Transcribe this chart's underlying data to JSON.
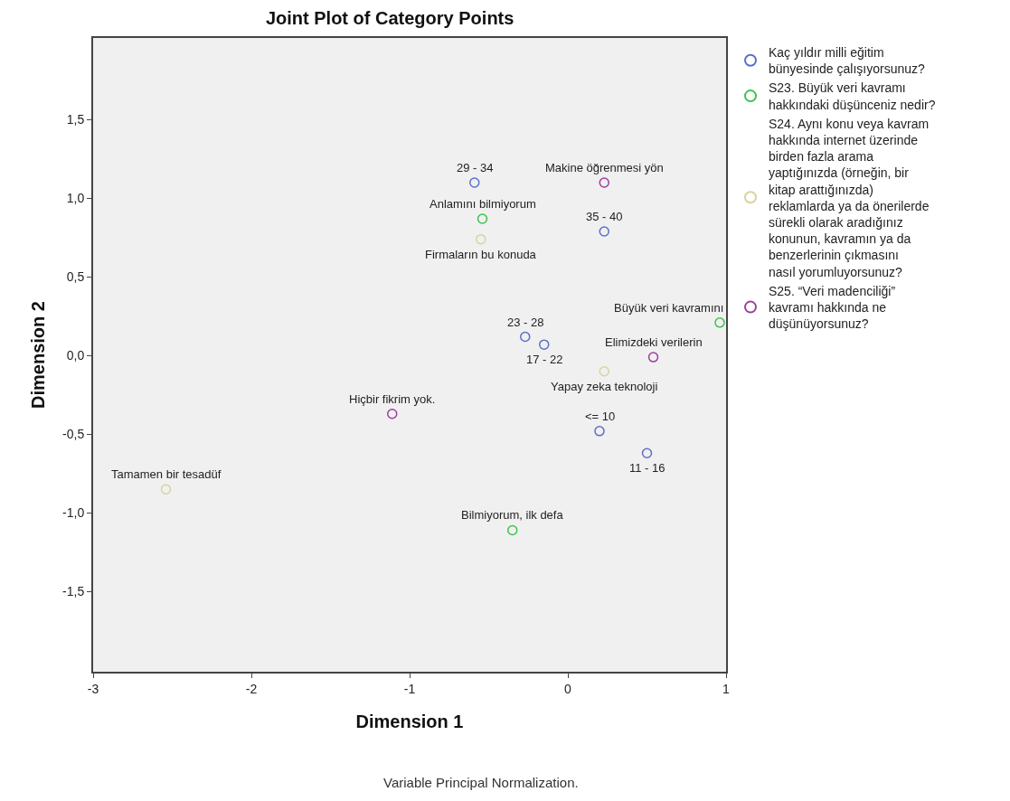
{
  "chart_data": {
    "type": "scatter",
    "title": "Joint Plot of Category Points",
    "xlabel": "Dimension 1",
    "ylabel": "Dimension 2",
    "xlim": [
      -3,
      1
    ],
    "xticks": [
      -3,
      -2,
      -1,
      0,
      1
    ],
    "ylim": [
      -2.01,
      2.02
    ],
    "yticks": [
      {
        "value": -1.5,
        "label": "-1,5"
      },
      {
        "value": -1,
        "label": "-1,0"
      },
      {
        "value": -0.5,
        "label": "-0,5"
      },
      {
        "value": 0,
        "label": "0,0"
      },
      {
        "value": 0.5,
        "label": "0,5"
      },
      {
        "value": 1,
        "label": "1,0"
      },
      {
        "value": 1.5,
        "label": "1,5"
      }
    ],
    "grid": false,
    "legend": "top right",
    "marker": "circle",
    "series": [
      {
        "name": "Kaç yıldır milli eğitim bünyesinde çalışıyorsunuz?",
        "color": "#5b6fc8",
        "x": [
          -0.59,
          0.23,
          -0.27,
          -0.15,
          0.2,
          0.5
        ],
        "values": [
          1.1,
          0.79,
          0.12,
          0.07,
          -0.48,
          -0.62
        ]
      },
      {
        "name": "S23. Büyük veri kavramı hakkındaki düşünceniz nedir?",
        "color": "#3ec24f",
        "x": [
          -0.54,
          0.96,
          -0.35
        ],
        "values": [
          0.87,
          0.21,
          -1.11
        ]
      },
      {
        "name": "S24. Aynı konu veya kavram hakkında internet üzerinde birden fazla arama yaptığınızda (örneğin, bir kitap arattığınızda) reklamlarda ya da önerilerde sürekli olarak aradığınız konunun, kavramın ya da benzerlerinin çıkmasını nasıl yorumluyorsunuz?",
        "color": "#d8d49c",
        "x": [
          -0.55,
          0.23,
          -2.54
        ],
        "values": [
          0.74,
          -0.1,
          -0.85
        ]
      },
      {
        "name": "S25. “Veri madenciliği” kavramı hakkında ne düşünüyorsunuz?",
        "color": "#9c3f9c",
        "x": [
          0.23,
          0.54,
          -1.11
        ],
        "values": [
          1.1,
          -0.01,
          -0.37
        ]
      }
    ],
    "annotations": [
      {
        "text": "29 - 34",
        "x": -0.59,
        "y": 1.1
      },
      {
        "text": "35 - 40",
        "x": 0.23,
        "y": 0.79
      },
      {
        "text": "23 - 28",
        "x": -0.27,
        "y": 0.12
      },
      {
        "text": "17 - 22",
        "x": -0.15,
        "y": 0.07
      },
      {
        "text": "<= 10",
        "x": 0.2,
        "y": -0.48
      },
      {
        "text": "11 - 16",
        "x": 0.5,
        "y": -0.62
      },
      {
        "text": "Anlamını bilmiyorum",
        "x": -0.54,
        "y": 0.87
      },
      {
        "text": "Büyük veri kavramını",
        "x": 0.96,
        "y": 0.21
      },
      {
        "text": "Bilmiyorum, ilk defa",
        "x": -0.35,
        "y": -1.11
      },
      {
        "text": "Firmaların bu konuda",
        "x": -0.55,
        "y": 0.74
      },
      {
        "text": "Yapay zeka teknoloji",
        "x": 0.23,
        "y": -0.1
      },
      {
        "text": "Tamamen bir tesadüf",
        "x": -2.54,
        "y": -0.85
      },
      {
        "text": "Makine öğrenmesi yön",
        "x": 0.23,
        "y": 1.1
      },
      {
        "text": "Elimizdeki verilerin",
        "x": 0.54,
        "y": -0.01
      },
      {
        "text": "Hiçbir fikrim yok.",
        "x": -1.11,
        "y": -0.37
      },
      "Variable Principal Normalization."
    ]
  }
}
